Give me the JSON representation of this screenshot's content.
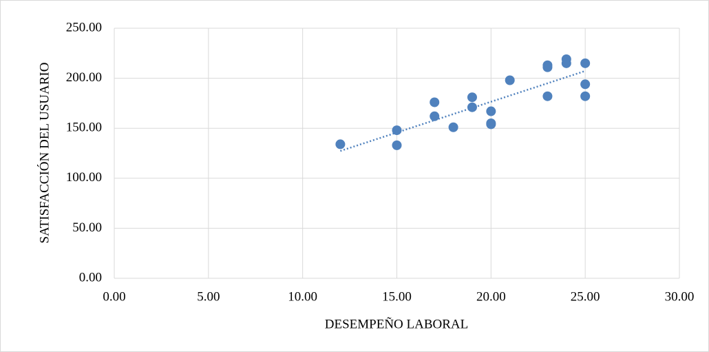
{
  "chart_data": {
    "type": "scatter",
    "xlabel": "DESEMPEÑO LABORAL",
    "ylabel": "SATISFACCIÓN DEL USUARIO",
    "series": [
      {
        "color": "#4f81bd",
        "x": [
          12,
          15,
          15,
          17,
          17,
          18,
          19,
          19,
          20,
          20,
          20,
          21,
          23,
          23,
          23,
          24,
          24,
          25,
          25,
          25
        ],
        "values": [
          134,
          148,
          133,
          176,
          162,
          151,
          181,
          171,
          167,
          155,
          154,
          198,
          213,
          211,
          182,
          219,
          215,
          215,
          194,
          182
        ]
      }
    ],
    "trendline": true,
    "xlim": [
      0,
      30
    ],
    "xticks": [
      {
        "value": 0,
        "label": "0.00"
      },
      {
        "value": 5,
        "label": "5.00"
      },
      {
        "value": 10,
        "label": "10.00"
      },
      {
        "value": 15,
        "label": "15.00"
      },
      {
        "value": 20,
        "label": "20.00"
      },
      {
        "value": 25,
        "label": "25.00"
      },
      {
        "value": 30,
        "label": "30.00"
      }
    ],
    "ylim": [
      0,
      250
    ],
    "yticks": [
      {
        "value": 0,
        "label": "0.00"
      },
      {
        "value": 50,
        "label": "50.00"
      },
      {
        "value": 100,
        "label": "100.00"
      },
      {
        "value": 150,
        "label": "150.00"
      },
      {
        "value": 200,
        "label": "200.00"
      },
      {
        "value": 250,
        "label": "250.00"
      }
    ],
    "grid": true
  }
}
